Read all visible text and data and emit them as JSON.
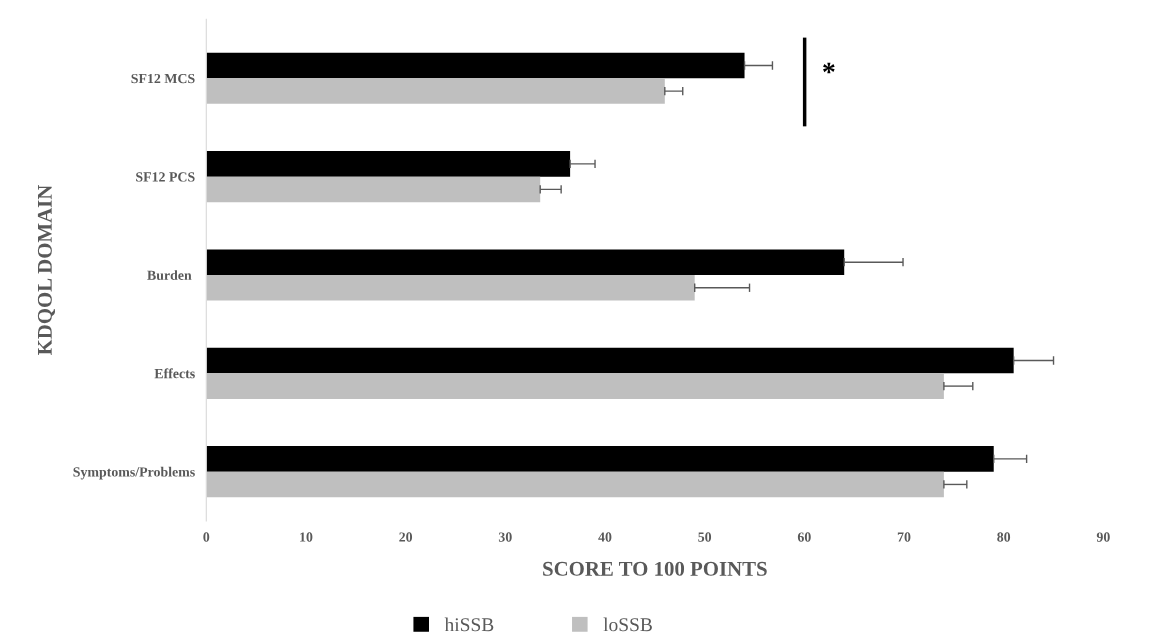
{
  "chart_data": {
    "type": "bar",
    "orientation": "horizontal",
    "xlabel": "SCORE TO 100 POINTS",
    "ylabel": "KDQOL DOMAIN",
    "categories": [
      "SF12 MCS",
      "SF12 PCS",
      "Burden ",
      "Effects",
      "Symptoms/Problems"
    ],
    "series": [
      {
        "name": "hiSSB",
        "color": "#000000",
        "values": [
          54,
          36.5,
          64,
          81,
          79
        ],
        "errors": [
          [
            54,
            56.8
          ],
          [
            36.5,
            39
          ],
          [
            64,
            69.9
          ],
          [
            81,
            85
          ],
          [
            79,
            82.3
          ]
        ]
      },
      {
        "name": "loSSB",
        "color": "#bfbfbf",
        "values": [
          46,
          33.5,
          49,
          74,
          74
        ],
        "errors": [
          [
            46,
            47.8
          ],
          [
            33.5,
            35.6
          ],
          [
            49,
            54.5
          ],
          [
            74,
            76.9
          ],
          [
            74,
            76.3
          ]
        ]
      }
    ],
    "xlim": [
      0,
      90
    ],
    "xticks": [
      0,
      10,
      20,
      30,
      40,
      50,
      60,
      70,
      80,
      90
    ],
    "grid": false,
    "legend": "bottom",
    "annotations": [
      "*"
    ]
  }
}
